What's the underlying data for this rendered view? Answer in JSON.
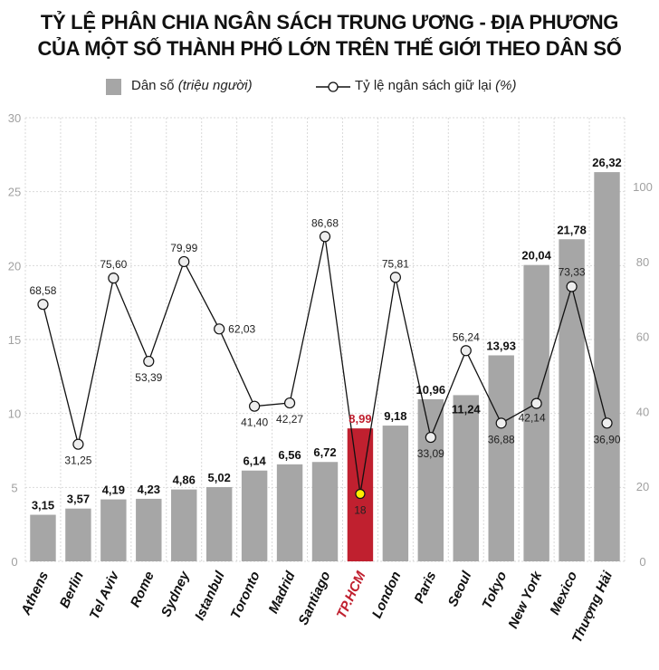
{
  "title": {
    "line1": "TỶ LỆ PHÂN CHIA NGÂN SÁCH TRUNG ƯƠNG - ĐỊA PHƯƠNG",
    "line2": "CỦA MỘT SỐ THÀNH PHỐ LỚN TRÊN THẾ GIỚI THEO DÂN SỐ"
  },
  "legend": {
    "bar_label": "Dân số",
    "bar_unit": "(triệu người)",
    "line_label": "Tỷ lệ ngân sách giữ lại",
    "line_unit": "(%)"
  },
  "colors": {
    "bar": "#a6a6a6",
    "highlight_bar": "#c0202f",
    "highlight_marker": "#ffee00",
    "line": "#111111",
    "marker_fill": "#eeeeee",
    "grid": "#d9d9d9",
    "axis_text": "#a0a0a0"
  },
  "chart_data": {
    "type": "bar+line",
    "title": "TỶ LỆ PHÂN CHIA NGÂN SÁCH TRUNG ƯƠNG - ĐỊA PHƯƠNG CỦA MỘT SỐ THÀNH PHỐ LỚN TRÊN THẾ GIỚI THEO DÂN SỐ",
    "categories": [
      "Athens",
      "Berlin",
      "Tel Aviv",
      "Rome",
      "Sydney",
      "Istanbul",
      "Toronto",
      "Madrid",
      "Santiago",
      "TP.HCM",
      "London",
      "Paris",
      "Seoul",
      "Tokyo",
      "New York",
      "Mexico",
      "Thượng Hải"
    ],
    "highlight_category": "TP.HCM",
    "series": [
      {
        "name": "Dân số (triệu người)",
        "type": "bar",
        "axis": "left",
        "values": [
          3.15,
          3.57,
          4.19,
          4.23,
          4.86,
          5.02,
          6.14,
          6.56,
          6.72,
          8.99,
          9.18,
          10.96,
          11.24,
          13.93,
          20.04,
          21.78,
          26.32
        ],
        "labels": [
          "3,15",
          "3,57",
          "4,19",
          "4,23",
          "4,86",
          "5,02",
          "6,14",
          "6,56",
          "6,72",
          "8,99",
          "9,18",
          "10,96",
          "11,24",
          "13,93",
          "20,04",
          "21,78",
          "26,32"
        ]
      },
      {
        "name": "Tỷ lệ ngân sách giữ lại (%)",
        "type": "line",
        "axis": "right",
        "values": [
          68.58,
          31.25,
          75.6,
          53.39,
          79.99,
          62.03,
          41.4,
          42.27,
          86.68,
          18,
          75.81,
          33.09,
          56.24,
          36.88,
          42.14,
          73.33,
          36.9
        ],
        "labels": [
          "68,58",
          "31,25",
          "75,60",
          "53,39",
          "79,99",
          "62,03",
          "41,40",
          "42,27",
          "86,68",
          "18",
          "75,81",
          "33,09",
          "56,24",
          "36,88",
          "42,14",
          "73,33",
          "36,90"
        ]
      }
    ],
    "left_axis": {
      "ticks": [
        "0",
        "5",
        "10",
        "15",
        "20",
        "25",
        "30"
      ],
      "ylim": [
        0,
        30
      ]
    },
    "right_axis": {
      "ticks": [
        "0",
        "20",
        "40",
        "60",
        "80",
        "100"
      ],
      "ylim": [
        0,
        118.4
      ]
    },
    "grid": true,
    "legend_position": "top"
  }
}
